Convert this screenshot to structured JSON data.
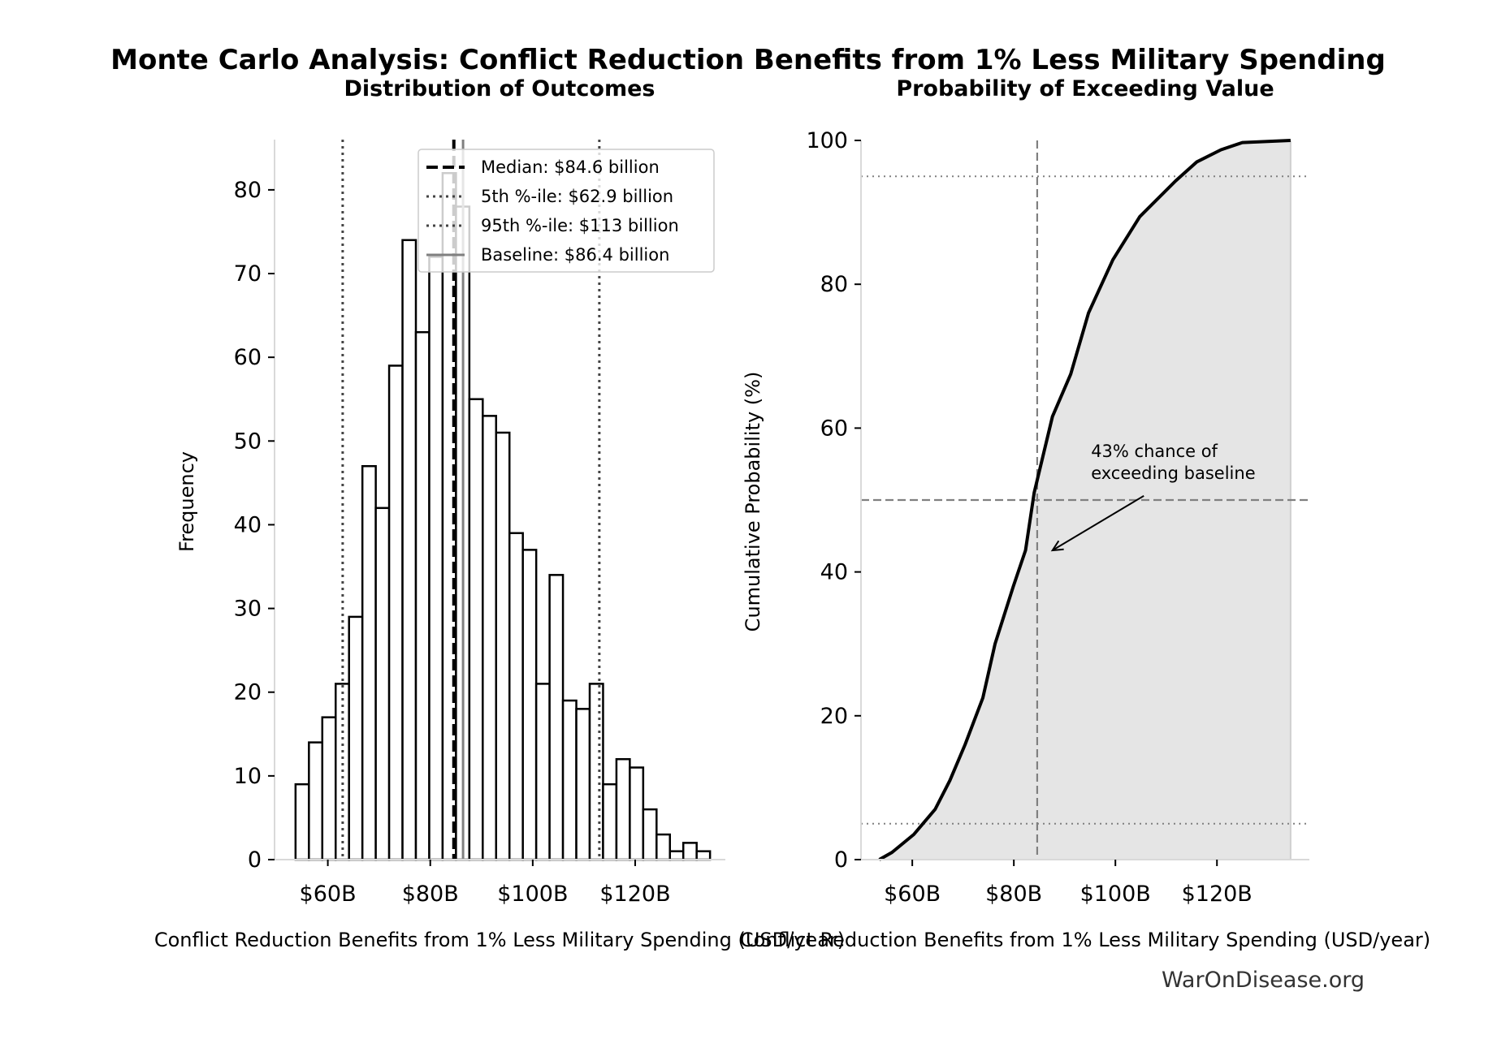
{
  "title": "Monte Carlo Analysis: Conflict Reduction Benefits from 1% Less Military Spending",
  "footer": "WarOnDisease.org",
  "chart_data": [
    {
      "type": "bar",
      "subtitle": "Distribution of Outcomes",
      "xlabel": "Conflict Reduction Benefits from 1% Less Military Spending (USD/year)",
      "ylabel": "Frequency",
      "xlim": [
        49.6,
        137.6
      ],
      "ylim": [
        0,
        86
      ],
      "xticks": [
        60,
        80,
        100,
        120
      ],
      "xtick_labels": [
        "$60B",
        "$80B",
        "$100B",
        "$120B"
      ],
      "yticks": [
        0,
        10,
        20,
        30,
        40,
        50,
        60,
        70,
        80
      ],
      "yticks_labels": [
        "0",
        "10",
        "20",
        "30",
        "40",
        "50",
        "60",
        "70",
        "80"
      ],
      "bin_start": 53.7,
      "bin_width": 2.61,
      "values": [
        9,
        14,
        17,
        21,
        29,
        47,
        42,
        59,
        74,
        63,
        72,
        82,
        78,
        55,
        53,
        51,
        39,
        37,
        21,
        34,
        19,
        18,
        21,
        9,
        12,
        11,
        6,
        3,
        1,
        2,
        1
      ],
      "reference_lines": [
        {
          "label": "Median: $84.6 billion",
          "x": 84.6,
          "style": "dashed",
          "color": "#000000"
        },
        {
          "label": "5th %-ile: $62.9 billion",
          "x": 62.9,
          "style": "dotted",
          "color": "#444444"
        },
        {
          "label": "95th %-ile: $113 billion",
          "x": 113,
          "style": "dotted",
          "color": "#444444"
        },
        {
          "label": "Baseline: $86.4 billion",
          "x": 86.4,
          "style": "solid",
          "color": "#808080"
        }
      ],
      "legend_position": "top-right",
      "grid": false
    },
    {
      "type": "area",
      "subtitle": "Probability of Exceeding Value",
      "xlabel": "Conflict Reduction Benefits from 1% Less Military Spending (USD/year)",
      "ylabel": "Cumulative Probability (%)",
      "xlim": [
        49.9,
        138.2
      ],
      "ylim": [
        0,
        100
      ],
      "xticks": [
        60,
        80,
        100,
        120
      ],
      "xtick_labels": [
        "$60B",
        "$80B",
        "$100B",
        "$120B"
      ],
      "yticks": [
        0,
        20,
        40,
        60,
        80,
        100
      ],
      "ytick_labels": [
        "0",
        "20",
        "40",
        "60",
        "80",
        "100"
      ],
      "x": [
        53.5,
        56,
        60.3,
        64.5,
        67.4,
        70.4,
        73.9,
        76.3,
        79.9,
        82.3,
        84,
        87.6,
        91.2,
        94.7,
        99.5,
        104.8,
        111.9,
        116,
        120.8,
        125,
        134.5
      ],
      "y": [
        0,
        1,
        3.5,
        7,
        11,
        16,
        22.5,
        30,
        38,
        43,
        51,
        61.6,
        67.5,
        76,
        83.4,
        89.4,
        94.4,
        97,
        98.7,
        99.7,
        100
      ],
      "fill_color": "#e5e5e5",
      "hlines": [
        {
          "y": 5,
          "style": "dotted"
        },
        {
          "y": 95,
          "style": "dotted"
        },
        {
          "y": 50,
          "style": "dashed"
        }
      ],
      "vline": {
        "x": 84.6,
        "style": "dashed"
      },
      "annotation": {
        "line1": "43% chance of",
        "line2": "exceeding baseline",
        "text_x": 95.2,
        "text_y": 56,
        "arrow_x": 87.6,
        "arrow_y": 43
      },
      "grid": false
    }
  ]
}
